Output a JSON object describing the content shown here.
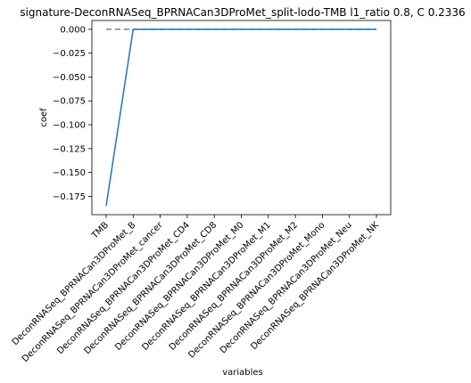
{
  "chart_data": {
    "type": "line",
    "title": "signature-DeconRNASeq_BPRNACan3DProMet_split-lodo-TMB l1_ratio 0.8, C 0.2336",
    "xlabel": "variables",
    "ylabel": "coef",
    "categories": [
      "TMB",
      "DeconRNASeq_BPRNACan3DProMet_B",
      "DeconRNASeq_BPRNACan3DProMet_cancer",
      "DeconRNASeq_BPRNACan3DProMet_CD4",
      "DeconRNASeq_BPRNACan3DProMet_CD8",
      "DeconRNASeq_BPRNACan3DProMet_M0",
      "DeconRNASeq_BPRNACan3DProMet_M1",
      "DeconRNASeq_BPRNACan3DProMet_M2",
      "DeconRNASeq_BPRNACan3DProMet_Mono",
      "DeconRNASeq_BPRNACan3DProMet_Neu",
      "DeconRNASeq_BPRNACan3DProMet_NK"
    ],
    "series": [
      {
        "values": [
          -0.185,
          0,
          0,
          0,
          0,
          0,
          0,
          0,
          0,
          0,
          0
        ],
        "color": "#1f77b4",
        "style": "solid"
      }
    ],
    "reference_line": {
      "y": 0,
      "color": "#808080",
      "style": "dashed"
    },
    "ylim": [
      -0.1942,
      0.0092
    ],
    "yticks": [
      0.0,
      -0.025,
      -0.05,
      -0.075,
      -0.1,
      -0.125,
      -0.15,
      -0.175
    ],
    "ytick_labels": [
      "0.000",
      "−0.025",
      "−0.050",
      "−0.075",
      "−0.100",
      "−0.125",
      "−0.150",
      "−0.175"
    ],
    "grid": false
  }
}
